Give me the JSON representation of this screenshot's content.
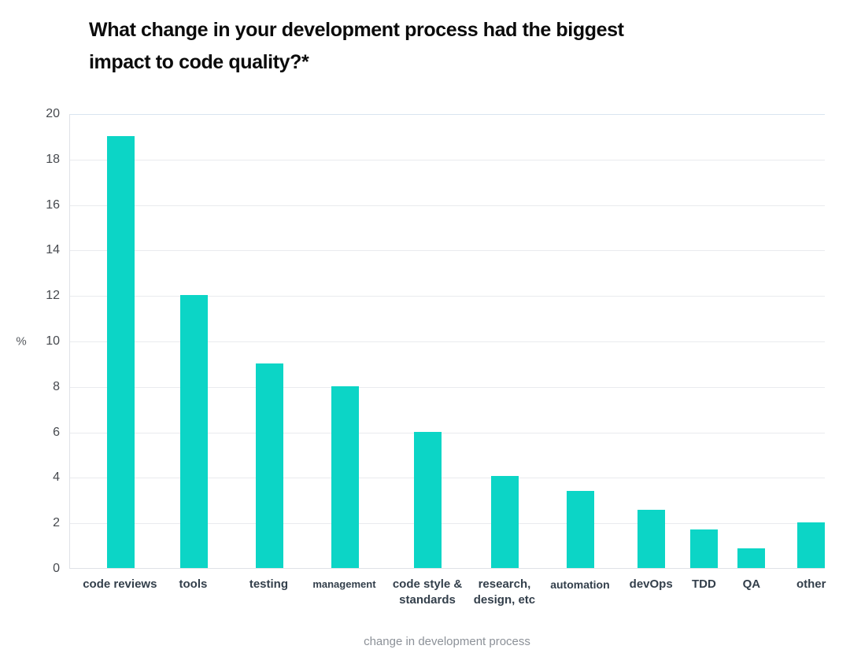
{
  "title": {
    "lines": [
      "What change in your development process had the biggest",
      "impact to code quality?*"
    ]
  },
  "chart_data": {
    "type": "bar",
    "title": "What change in your development process had the biggest impact to code quality?*",
    "xlabel": "change in development process",
    "ylabel": "%",
    "ylim": [
      0,
      20
    ],
    "y_ticks": [
      20,
      18,
      16,
      14,
      12,
      10,
      8,
      6,
      4,
      2,
      0
    ],
    "grid": true,
    "legend": false,
    "bar_color": "#0cd5c6",
    "gridline_color": "#e9ebee",
    "categories": [
      "code reviews",
      "tools",
      "testing",
      "management",
      "code style & standards",
      "research, design, etc",
      "automation",
      "devOps",
      "TDD",
      "QA",
      "other"
    ],
    "values": [
      19,
      12,
      9,
      8,
      6,
      4.05,
      3.4,
      2.55,
      1.7,
      0.85,
      2
    ],
    "label_lines": [
      [
        "code reviews"
      ],
      [
        "tools"
      ],
      [
        "testing"
      ],
      [
        "management"
      ],
      [
        "code style &",
        "standards"
      ],
      [
        "research,",
        "design, etc"
      ],
      [
        "automation"
      ],
      [
        "devOps"
      ],
      [
        "TDD"
      ],
      [
        "QA"
      ],
      [
        "other"
      ]
    ],
    "centers_pct": [
      6.7,
      16.4,
      26.4,
      36.4,
      47.4,
      57.6,
      67.6,
      77.0,
      84.0,
      90.3,
      98.2
    ]
  }
}
